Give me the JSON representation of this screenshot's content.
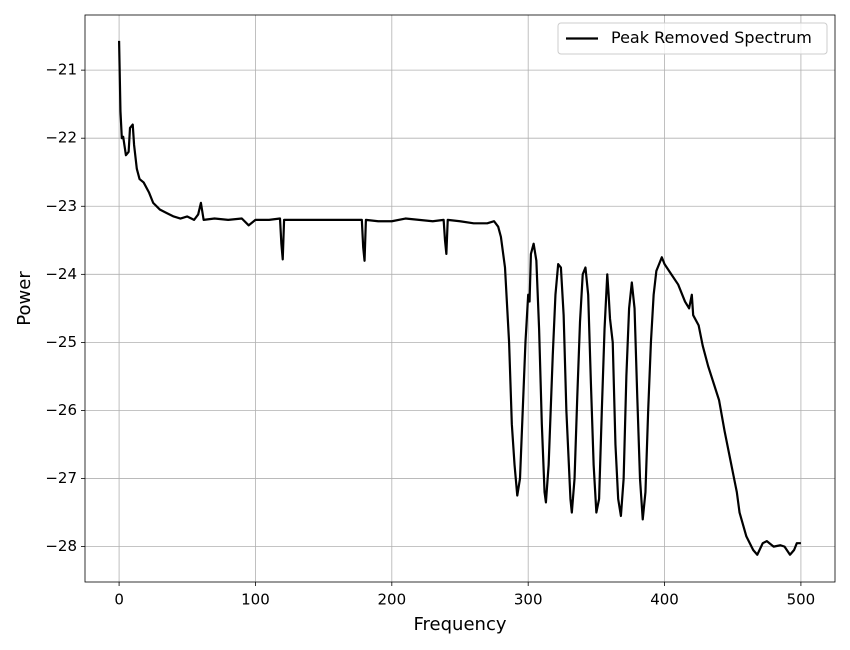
{
  "chart_data": {
    "type": "line",
    "xlabel": "Frequency",
    "ylabel": "Power",
    "x": [
      0,
      1,
      2,
      3,
      5,
      7,
      8,
      10,
      11,
      13,
      15,
      18,
      22,
      25,
      30,
      35,
      40,
      45,
      50,
      55,
      58,
      60,
      62,
      70,
      80,
      90,
      95,
      100,
      110,
      118,
      119,
      120,
      121,
      130,
      150,
      170,
      178,
      179,
      180,
      181,
      190,
      200,
      210,
      220,
      230,
      238,
      239,
      240,
      241,
      250,
      260,
      270,
      275,
      278,
      280,
      283,
      286,
      288,
      290,
      292,
      294,
      296,
      298,
      300,
      301,
      302,
      304,
      306,
      308,
      310,
      312,
      313,
      315,
      318,
      320,
      322,
      324,
      326,
      328,
      331,
      332,
      334,
      336,
      338,
      340,
      342,
      344,
      346,
      348,
      350,
      352,
      354,
      356,
      358,
      359,
      360,
      362,
      364,
      366,
      368,
      370,
      372,
      374,
      376,
      378,
      380,
      382,
      384,
      386,
      388,
      390,
      392,
      394,
      396,
      398,
      400,
      405,
      410,
      415,
      418,
      420,
      421,
      425,
      428,
      432,
      436,
      440,
      444,
      448,
      452,
      453,
      455,
      460,
      465,
      468,
      472,
      475,
      480,
      485,
      488,
      492,
      495,
      497,
      500
    ],
    "series": [
      {
        "name": "Peak Removed Spectrum",
        "color": "#000000",
        "values": [
          -20.57,
          -21.6,
          -22.0,
          -21.98,
          -22.25,
          -22.2,
          -21.85,
          -21.8,
          -22.1,
          -22.45,
          -22.6,
          -22.65,
          -22.8,
          -22.95,
          -23.05,
          -23.1,
          -23.15,
          -23.18,
          -23.15,
          -23.2,
          -23.12,
          -22.95,
          -23.2,
          -23.18,
          -23.2,
          -23.18,
          -23.28,
          -23.2,
          -23.2,
          -23.18,
          -23.55,
          -23.78,
          -23.2,
          -23.2,
          -23.2,
          -23.2,
          -23.2,
          -23.6,
          -23.8,
          -23.2,
          -23.22,
          -23.22,
          -23.18,
          -23.2,
          -23.22,
          -23.2,
          -23.5,
          -23.7,
          -23.2,
          -23.22,
          -23.25,
          -23.25,
          -23.22,
          -23.3,
          -23.45,
          -23.9,
          -25.0,
          -26.2,
          -26.8,
          -27.25,
          -27.0,
          -26.0,
          -25.0,
          -24.3,
          -24.4,
          -23.7,
          -23.55,
          -23.8,
          -24.8,
          -26.2,
          -27.2,
          -27.35,
          -26.8,
          -25.2,
          -24.3,
          -23.85,
          -23.9,
          -24.6,
          -26.0,
          -27.3,
          -27.5,
          -27.0,
          -25.8,
          -24.7,
          -24.0,
          -23.9,
          -24.3,
          -25.6,
          -26.8,
          -27.5,
          -27.3,
          -26.0,
          -24.8,
          -24.0,
          -24.3,
          -24.65,
          -25.0,
          -26.5,
          -27.3,
          -27.55,
          -27.0,
          -25.5,
          -24.5,
          -24.12,
          -24.5,
          -25.8,
          -27.0,
          -27.6,
          -27.2,
          -26.0,
          -25.0,
          -24.3,
          -23.95,
          -23.85,
          -23.75,
          -23.85,
          -24.0,
          -24.15,
          -24.4,
          -24.5,
          -24.3,
          -24.6,
          -24.75,
          -25.05,
          -25.35,
          -25.6,
          -25.85,
          -26.3,
          -26.7,
          -27.1,
          -27.2,
          -27.5,
          -27.85,
          -28.05,
          -28.12,
          -27.95,
          -27.92,
          -28.0,
          -27.98,
          -28.0,
          -28.12,
          -28.05,
          -27.95,
          -27.95
        ]
      }
    ],
    "xlim": [
      -25,
      525
    ],
    "xticks": [
      0,
      100,
      200,
      300,
      400,
      500
    ],
    "ylim": [
      -28.52,
      -20.19
    ],
    "yticks": [
      {
        "value": -28,
        "label": "−28"
      },
      {
        "value": -27,
        "label": "−27"
      },
      {
        "value": -26,
        "label": "−26"
      },
      {
        "value": -25,
        "label": "−25"
      },
      {
        "value": -24,
        "label": "−24"
      },
      {
        "value": -23,
        "label": "−23"
      },
      {
        "value": -22,
        "label": "−22"
      },
      {
        "value": -21,
        "label": "−21"
      }
    ],
    "grid": true,
    "legend": "upper right"
  }
}
